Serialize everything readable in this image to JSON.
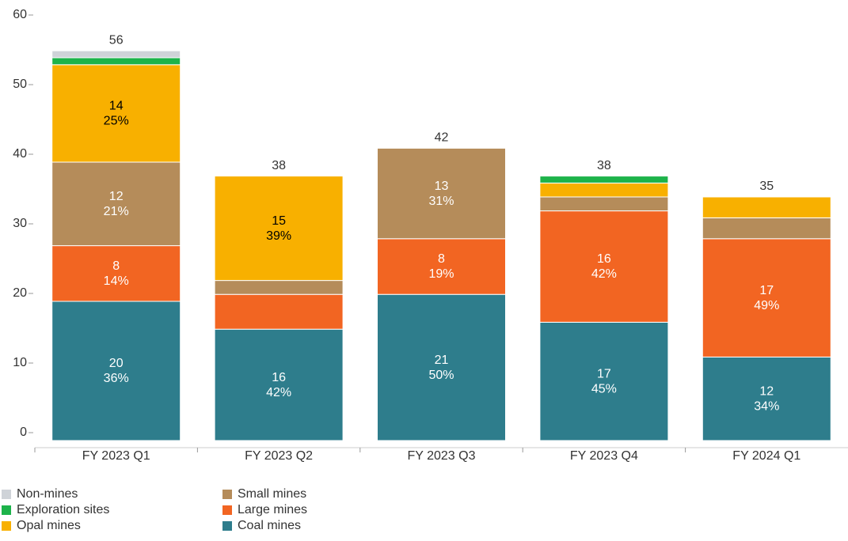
{
  "chart_data": {
    "type": "stacked_bar",
    "categories": [
      "FY 2023 Q1",
      "FY 2023 Q2",
      "FY 2023 Q3",
      "FY 2023 Q4",
      "FY 2024 Q1"
    ],
    "series": [
      {
        "name": "Non-mines",
        "color": "#cfd3d8",
        "values": [
          1,
          0,
          0,
          0,
          0
        ],
        "value_labels": [
          null,
          null,
          null,
          null,
          null
        ],
        "shares": [
          null,
          null,
          null,
          null,
          null
        ]
      },
      {
        "name": "Exploration sites",
        "color": "#1db34a",
        "values": [
          1,
          0,
          0,
          1,
          0
        ],
        "value_labels": [
          null,
          null,
          null,
          null,
          null
        ],
        "shares": [
          null,
          null,
          null,
          null,
          null
        ]
      },
      {
        "name": "Opal mines",
        "color": "#f8b000",
        "label_color": "#000",
        "values": [
          14,
          15,
          0,
          2,
          3
        ],
        "value_labels": [
          "14",
          "15",
          null,
          null,
          null
        ],
        "shares": [
          "25%",
          "39%",
          null,
          null,
          null
        ]
      },
      {
        "name": "Small mines",
        "color": "#b58c5a",
        "values": [
          12,
          2,
          13,
          2,
          3
        ],
        "value_labels": [
          "12",
          null,
          "13",
          null,
          null
        ],
        "shares": [
          "21%",
          null,
          "31%",
          null,
          null
        ]
      },
      {
        "name": "Large mines",
        "color": "#f26522",
        "values": [
          8,
          5,
          8,
          16,
          17
        ],
        "value_labels": [
          "8",
          null,
          "8",
          "16",
          "17"
        ],
        "shares": [
          "14%",
          null,
          "19%",
          "42%",
          "49%"
        ]
      },
      {
        "name": "Coal mines",
        "color": "#2e7d8c",
        "values": [
          20,
          16,
          21,
          17,
          12
        ],
        "value_labels": [
          "20",
          "16",
          "21",
          "17",
          "12"
        ],
        "shares": [
          "36%",
          "42%",
          "50%",
          "45%",
          "34%"
        ]
      }
    ],
    "totals": [
      56,
      38,
      42,
      38,
      35
    ],
    "ylim": [
      0,
      60
    ],
    "yticks": [
      0,
      10,
      20,
      30,
      40,
      50,
      60
    ]
  }
}
